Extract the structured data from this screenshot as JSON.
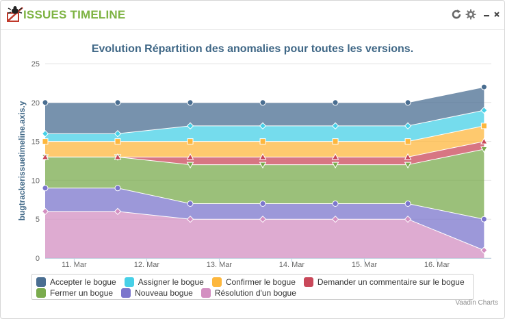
{
  "header": {
    "title": "ISSUES TIMELINE"
  },
  "icons": {
    "logo": "bug-logo-icon",
    "refresh": "refresh-icon",
    "settings": "gear-icon",
    "minimize": "minimize-icon",
    "close": "close-icon"
  },
  "credits": "Vaadin Charts",
  "chart_data": {
    "type": "area",
    "stacked": true,
    "title": "Evolution Répartition des anomalies pour toutes les versions.",
    "xlabel": "",
    "ylabel": "bugtrackerissuetimeline.axis.y",
    "ylim": [
      0,
      25
    ],
    "yticks": [
      0,
      5,
      10,
      15,
      20,
      25
    ],
    "xlim": [
      10.6,
      16.75
    ],
    "xticks": [
      11,
      12,
      13,
      14,
      15,
      16
    ],
    "xtick_labels": [
      "11. Mar",
      "12. Mar",
      "13. Mar",
      "14. Mar",
      "15. Mar",
      "16. Mar"
    ],
    "x": [
      10.6,
      11.6,
      12.6,
      13.6,
      14.6,
      15.6,
      16.65
    ],
    "grid": true,
    "legend_position": "bottom",
    "series": [
      {
        "name": "Accepter le bogue",
        "color": "#4a6e91",
        "marker": "circle",
        "values": [
          4,
          4,
          3,
          3,
          3,
          3,
          3
        ]
      },
      {
        "name": "Assigner le bogue",
        "color": "#47d0e7",
        "marker": "diamond",
        "values": [
          1,
          1,
          2,
          2,
          2,
          2,
          2
        ]
      },
      {
        "name": "Confirmer le bogue",
        "color": "#fdb73d",
        "marker": "square",
        "values": [
          2,
          2,
          2,
          2,
          2,
          2,
          2
        ]
      },
      {
        "name": "Demander un commentaire sur le bogue",
        "color": "#c9485a",
        "marker": "triangle",
        "values": [
          0,
          0,
          1,
          1,
          1,
          1,
          1
        ]
      },
      {
        "name": "Fermer un bogue",
        "color": "#7aab4d",
        "marker": "triangle-down",
        "values": [
          4,
          4,
          5,
          5,
          5,
          5,
          9
        ]
      },
      {
        "name": "Nouveau bogue",
        "color": "#7b76cc",
        "marker": "circle",
        "values": [
          3,
          3,
          2,
          2,
          2,
          2,
          4
        ]
      },
      {
        "name": "Résolution d'un bogue",
        "color": "#d38fc1",
        "marker": "diamond",
        "values": [
          6,
          6,
          5,
          5,
          5,
          5,
          1
        ]
      }
    ]
  }
}
